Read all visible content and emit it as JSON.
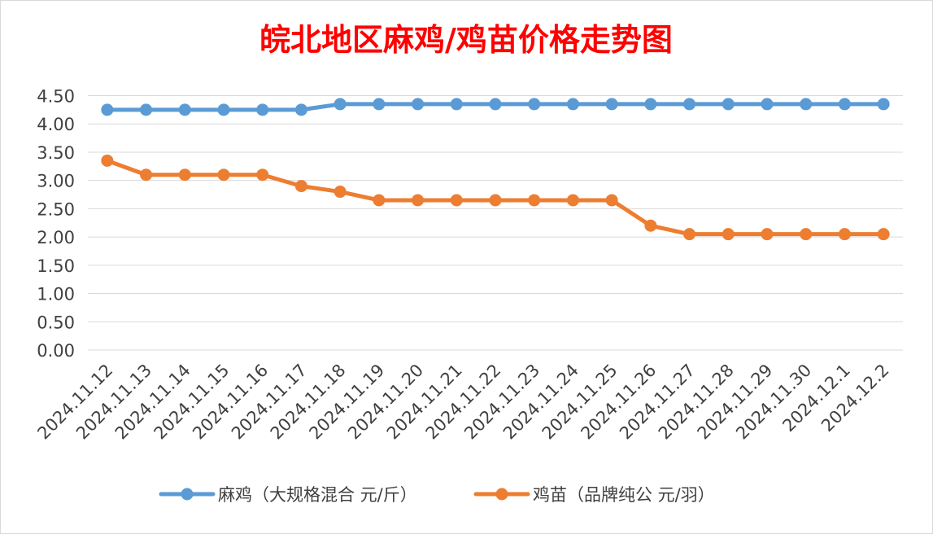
{
  "chart_data": {
    "type": "line",
    "title": "皖北地区麻鸡/鸡苗价格走势图",
    "categories": [
      "2024.11.12",
      "2024.11.13",
      "2024.11.14",
      "2024.11.15",
      "2024.11.16",
      "2024.11.17",
      "2024.11.18",
      "2024.11.19",
      "2024.11.20",
      "2024.11.21",
      "2024.11.22",
      "2024.11.23",
      "2024.11.24",
      "2024.11.25",
      "2024.11.26",
      "2024.11.27",
      "2024.11.28",
      "2024.11.29",
      "2024.11.30",
      "2024.12.1",
      "2024.12.2"
    ],
    "yticks": [
      "0.00",
      "0.50",
      "1.00",
      "1.50",
      "2.00",
      "2.50",
      "3.00",
      "3.50",
      "4.00",
      "4.50"
    ],
    "ylim": [
      0,
      4.5
    ],
    "grid": true,
    "legend_position": "bottom",
    "series": [
      {
        "name": "麻鸡（大规格混合 元/斤）",
        "color": "#5b9bd5",
        "values": [
          4.25,
          4.25,
          4.25,
          4.25,
          4.25,
          4.25,
          4.35,
          4.35,
          4.35,
          4.35,
          4.35,
          4.35,
          4.35,
          4.35,
          4.35,
          4.35,
          4.35,
          4.35,
          4.35,
          4.35,
          4.35
        ]
      },
      {
        "name": "鸡苗（品牌纯公 元/羽）",
        "color": "#ed7d31",
        "values": [
          3.35,
          3.1,
          3.1,
          3.1,
          3.1,
          2.9,
          2.8,
          2.65,
          2.65,
          2.65,
          2.65,
          2.65,
          2.65,
          2.65,
          2.2,
          2.05,
          2.05,
          2.05,
          2.05,
          2.05,
          2.05
        ]
      }
    ],
    "title_color": "#ff0000"
  }
}
